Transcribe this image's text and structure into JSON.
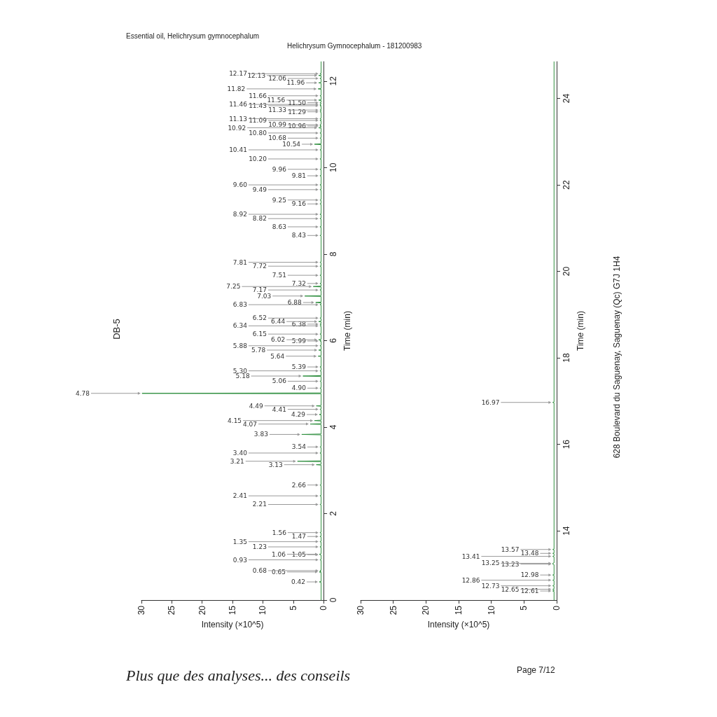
{
  "chart_data": [
    {
      "type": "line",
      "orientation": "horizontal",
      "title": "Helichrysum Gymnocephalum - 181200983",
      "xlabel": "Intensity (×10^5)",
      "ylabel": "Time (min)",
      "xlim": [
        30,
        0
      ],
      "xticks": [
        0,
        5,
        10,
        15,
        20,
        25,
        30
      ],
      "ylim": [
        0,
        12.45
      ],
      "yticks": [
        0,
        2,
        4,
        6,
        8,
        10,
        12
      ],
      "marker": "none",
      "line_style": "solid",
      "grid": false,
      "x": [
        0,
        0.41,
        0.42,
        0.43,
        0.64,
        0.65,
        0.66,
        0.67,
        0.68,
        0.69,
        0.92,
        0.93,
        0.94,
        1.04,
        1.05,
        1.06,
        1.07,
        1.22,
        1.23,
        1.24,
        1.34,
        1.35,
        1.36,
        1.46,
        1.47,
        1.48,
        1.55,
        1.56,
        1.57,
        2.2,
        2.21,
        2.22,
        2.4,
        2.41,
        2.42,
        2.65,
        2.66,
        2.67,
        3.12,
        3.13,
        3.14,
        3.2,
        3.21,
        3.22,
        3.39,
        3.4,
        3.41,
        3.53,
        3.54,
        3.55,
        3.82,
        3.83,
        3.84,
        4.06,
        4.07,
        4.08,
        4.14,
        4.15,
        4.16,
        4.28,
        4.29,
        4.3,
        4.4,
        4.41,
        4.42,
        4.48,
        4.49,
        4.5,
        4.77,
        4.78,
        4.79,
        4.89,
        4.9,
        4.91,
        5.05,
        5.06,
        5.07,
        5.17,
        5.18,
        5.19,
        5.29,
        5.3,
        5.31,
        5.38,
        5.39,
        5.4,
        5.63,
        5.64,
        5.65,
        5.77,
        5.78,
        5.79,
        5.87,
        5.88,
        5.89,
        5.98,
        5.99,
        6.0,
        6.01,
        6.02,
        6.03,
        6.14,
        6.15,
        6.16,
        6.33,
        6.34,
        6.35,
        6.37,
        6.38,
        6.39,
        6.43,
        6.44,
        6.45,
        6.51,
        6.52,
        6.53,
        6.82,
        6.83,
        6.84,
        6.87,
        6.88,
        6.89,
        7.02,
        7.03,
        7.04,
        7.16,
        7.17,
        7.18,
        7.24,
        7.25,
        7.26,
        7.31,
        7.32,
        7.33,
        7.5,
        7.51,
        7.52,
        7.71,
        7.72,
        7.73,
        7.8,
        7.81,
        7.82,
        8.42,
        8.43,
        8.44,
        8.62,
        8.63,
        8.64,
        8.81,
        8.82,
        8.83,
        8.91,
        8.92,
        8.93,
        9.15,
        9.16,
        9.17,
        9.24,
        9.25,
        9.26,
        9.48,
        9.49,
        9.5,
        9.59,
        9.6,
        9.61,
        9.8,
        9.81,
        9.82,
        9.95,
        9.96,
        9.97,
        10.19,
        10.2,
        10.21,
        10.4,
        10.41,
        10.42,
        10.53,
        10.54,
        10.55,
        10.67,
        10.68,
        10.69,
        10.79,
        10.8,
        10.81,
        10.91,
        10.92,
        10.93,
        10.95,
        10.96,
        10.97,
        10.98,
        10.99,
        11.0,
        11.08,
        11.09,
        11.1,
        11.12,
        11.13,
        11.14,
        11.28,
        11.29,
        11.3,
        11.32,
        11.33,
        11.34,
        11.42,
        11.43,
        11.44,
        11.45,
        11.46,
        11.47,
        11.49,
        11.5,
        11.51,
        11.55,
        11.56,
        11.57,
        11.65,
        11.66,
        11.67,
        11.81,
        11.82,
        11.83,
        11.95,
        11.96,
        11.97,
        12.05,
        12.06,
        12.07,
        12.12,
        12.13,
        12.14,
        12.16,
        12.17,
        12.18,
        12.45
      ],
      "series": [
        {
          "color": "#2f8f3f",
          "values": [
            0.4,
            0.4,
            0.7,
            0.4,
            0.4,
            0.7,
            0.4,
            0.4,
            0.6,
            0.4,
            0.4,
            0.6,
            0.4,
            0.4,
            0.6,
            0.7,
            0.4,
            0.4,
            0.6,
            0.4,
            0.4,
            0.6,
            0.4,
            0.4,
            0.6,
            0.4,
            0.4,
            0.6,
            0.4,
            0.4,
            0.6,
            0.4,
            0.4,
            0.6,
            0.4,
            0.4,
            0.6,
            0.4,
            0.4,
            1.2,
            0.4,
            0.4,
            4.3,
            0.4,
            0.4,
            0.6,
            0.4,
            0.4,
            0.6,
            0.4,
            0.4,
            3.6,
            0.4,
            0.4,
            2.2,
            0.4,
            0.4,
            1.5,
            0.4,
            0.4,
            0.7,
            0.4,
            0.4,
            0.6,
            0.4,
            0.4,
            1.2,
            0.4,
            0.4,
            29.9,
            0.4,
            0.4,
            0.6,
            0.4,
            0.4,
            0.6,
            0.4,
            0.4,
            3.4,
            0.4,
            0.4,
            0.6,
            0.4,
            0.4,
            0.6,
            0.4,
            0.4,
            0.9,
            0.4,
            0.4,
            0.8,
            0.4,
            0.4,
            0.6,
            0.4,
            0.4,
            0.6,
            0.4,
            0.4,
            0.8,
            0.4,
            0.4,
            0.6,
            0.4,
            0.4,
            0.6,
            0.4,
            0.4,
            0.6,
            0.4,
            0.4,
            0.8,
            0.4,
            0.4,
            0.6,
            0.4,
            0.4,
            0.6,
            0.4,
            0.4,
            1.3,
            0.4,
            0.4,
            3.1,
            0.4,
            0.4,
            0.6,
            0.4,
            0.4,
            1.7,
            0.4,
            0.4,
            0.6,
            0.4,
            0.4,
            0.6,
            0.4,
            0.4,
            0.6,
            0.4,
            0.4,
            0.6,
            0.4,
            0.4,
            0.6,
            0.4,
            0.4,
            0.6,
            0.4,
            0.4,
            0.6,
            0.4,
            0.4,
            0.6,
            0.4,
            0.4,
            0.6,
            0.4,
            0.4,
            0.6,
            0.4,
            0.4,
            0.6,
            0.4,
            0.4,
            0.6,
            0.4,
            0.4,
            0.6,
            0.4,
            0.4,
            0.6,
            0.4,
            0.4,
            0.6,
            0.4,
            0.4,
            0.6,
            0.4,
            0.4,
            1.5,
            0.4,
            0.4,
            0.6,
            0.4,
            0.4,
            0.6,
            0.4,
            0.4,
            0.8,
            0.4,
            0.4,
            0.6,
            0.4,
            0.4,
            0.6,
            0.4,
            0.4,
            0.6,
            0.4,
            0.4,
            0.6,
            0.4,
            0.4,
            0.6,
            0.4,
            0.4,
            0.6,
            0.4,
            0.4,
            0.6,
            0.4,
            0.4,
            0.6,
            0.4,
            0.4,
            0.6,
            0.4,
            0.4,
            0.8,
            0.4,
            0.4,
            0.6,
            0.4,
            0.4,
            0.9,
            0.4,
            0.4,
            0.8,
            0.4,
            0.4,
            0.6,
            0.4,
            0.4,
            0.8,
            0.4,
            0.4,
            0.6,
            0.4,
            0.4
          ]
        }
      ],
      "annotations": [
        "Essential oil, Helichrysum gymnocephalum",
        "DB-5",
        "628 Boulevard du Saguenay, Saguenay (Qc)  G7J 1H4",
        "Plus que des analyses... des conseils",
        "Page 7/12",
        {
          "text": "0.42",
          "y": 0.42,
          "x": 0.7
        },
        {
          "text": "0.65",
          "y": 0.65,
          "x": 0.7
        },
        {
          "text": "0.68",
          "y": 0.68,
          "x": 0.6
        },
        {
          "text": "0.93",
          "y": 0.93,
          "x": 0.6
        },
        {
          "text": "1.05",
          "y": 1.05,
          "x": 0.6
        },
        {
          "text": "1.06",
          "y": 1.06,
          "x": 0.7
        },
        {
          "text": "1.23",
          "y": 1.23,
          "x": 0.6
        },
        {
          "text": "1.35",
          "y": 1.35,
          "x": 0.6
        },
        {
          "text": "1.47",
          "y": 1.47,
          "x": 0.6
        },
        {
          "text": "1.56",
          "y": 1.56,
          "x": 0.6
        },
        {
          "text": "2.21",
          "y": 2.21,
          "x": 0.6
        },
        {
          "text": "2.41",
          "y": 2.41,
          "x": 0.6
        },
        {
          "text": "2.66",
          "y": 2.66,
          "x": 0.6
        },
        {
          "text": "3.13",
          "y": 3.13,
          "x": 1.2
        },
        {
          "text": "3.21",
          "y": 3.21,
          "x": 4.3
        },
        {
          "text": "3.40",
          "y": 3.4,
          "x": 0.6
        },
        {
          "text": "3.54",
          "y": 3.54,
          "x": 0.6
        },
        {
          "text": "3.83",
          "y": 3.83,
          "x": 3.6
        },
        {
          "text": "4.07",
          "y": 4.07,
          "x": 2.2
        },
        {
          "text": "4.15",
          "y": 4.15,
          "x": 1.5
        },
        {
          "text": "4.29",
          "y": 4.29,
          "x": 0.7
        },
        {
          "text": "4.41",
          "y": 4.41,
          "x": 0.6
        },
        {
          "text": "4.49",
          "y": 4.49,
          "x": 1.2
        },
        {
          "text": "4.78",
          "y": 4.78,
          "x": 29.9
        },
        {
          "text": "4.90",
          "y": 4.9,
          "x": 0.6
        },
        {
          "text": "5.06",
          "y": 5.06,
          "x": 0.6
        },
        {
          "text": "5.18",
          "y": 5.18,
          "x": 3.4
        },
        {
          "text": "5.30",
          "y": 5.3,
          "x": 0.6
        },
        {
          "text": "5.39",
          "y": 5.39,
          "x": 0.6
        },
        {
          "text": "5.64",
          "y": 5.64,
          "x": 0.9
        },
        {
          "text": "5.78",
          "y": 5.78,
          "x": 0.8
        },
        {
          "text": "5.88",
          "y": 5.88,
          "x": 0.6
        },
        {
          "text": "5.99",
          "y": 5.99,
          "x": 0.6
        },
        {
          "text": "6.02",
          "y": 6.02,
          "x": 0.8
        },
        {
          "text": "6.15",
          "y": 6.15,
          "x": 0.6
        },
        {
          "text": "6.34",
          "y": 6.34,
          "x": 0.6
        },
        {
          "text": "6.38",
          "y": 6.38,
          "x": 0.6
        },
        {
          "text": "6.44",
          "y": 6.44,
          "x": 0.8
        },
        {
          "text": "6.52",
          "y": 6.52,
          "x": 0.6
        },
        {
          "text": "6.83",
          "y": 6.83,
          "x": 0.6
        },
        {
          "text": "6.88",
          "y": 6.88,
          "x": 1.3
        },
        {
          "text": "7.03",
          "y": 7.03,
          "x": 3.1
        },
        {
          "text": "7.17",
          "y": 7.17,
          "x": 0.6
        },
        {
          "text": "7.25",
          "y": 7.25,
          "x": 1.7
        },
        {
          "text": "7.32",
          "y": 7.32,
          "x": 0.6
        },
        {
          "text": "7.51",
          "y": 7.51,
          "x": 0.6
        },
        {
          "text": "7.72",
          "y": 7.72,
          "x": 0.6
        },
        {
          "text": "7.81",
          "y": 7.81,
          "x": 0.6
        },
        {
          "text": "8.43",
          "y": 8.43,
          "x": 0.6
        },
        {
          "text": "8.63",
          "y": 8.63,
          "x": 0.6
        },
        {
          "text": "8.82",
          "y": 8.82,
          "x": 0.6
        },
        {
          "text": "8.92",
          "y": 8.92,
          "x": 0.6
        },
        {
          "text": "9.16",
          "y": 9.16,
          "x": 0.6
        },
        {
          "text": "9.25",
          "y": 9.25,
          "x": 0.6
        },
        {
          "text": "9.49",
          "y": 9.49,
          "x": 0.6
        },
        {
          "text": "9.60",
          "y": 9.6,
          "x": 0.6
        },
        {
          "text": "9.81",
          "y": 9.81,
          "x": 0.6
        },
        {
          "text": "9.96",
          "y": 9.96,
          "x": 0.6
        },
        {
          "text": "10.20",
          "y": 10.2,
          "x": 0.6
        },
        {
          "text": "10.41",
          "y": 10.41,
          "x": 0.6
        },
        {
          "text": "10.54",
          "y": 10.54,
          "x": 1.5
        },
        {
          "text": "10.68",
          "y": 10.68,
          "x": 0.6
        },
        {
          "text": "10.80",
          "y": 10.8,
          "x": 0.6
        },
        {
          "text": "10.92",
          "y": 10.92,
          "x": 0.8
        },
        {
          "text": "10.96",
          "y": 10.96,
          "x": 0.6
        },
        {
          "text": "10.99",
          "y": 10.99,
          "x": 0.6
        },
        {
          "text": "11.09",
          "y": 11.09,
          "x": 0.6
        },
        {
          "text": "11.13",
          "y": 11.13,
          "x": 0.6
        },
        {
          "text": "11.29",
          "y": 11.29,
          "x": 0.6
        },
        {
          "text": "11.33",
          "y": 11.33,
          "x": 0.6
        },
        {
          "text": "11.43",
          "y": 11.43,
          "x": 0.6
        },
        {
          "text": "11.46",
          "y": 11.46,
          "x": 0.6
        },
        {
          "text": "11.50",
          "y": 11.5,
          "x": 0.6
        },
        {
          "text": "11.56",
          "y": 11.56,
          "x": 0.8
        },
        {
          "text": "11.66",
          "y": 11.66,
          "x": 0.6
        },
        {
          "text": "11.82",
          "y": 11.82,
          "x": 0.9
        },
        {
          "text": "11.96",
          "y": 11.96,
          "x": 0.8
        },
        {
          "text": "12.06",
          "y": 12.06,
          "x": 0.6
        },
        {
          "text": "12.13",
          "y": 12.13,
          "x": 0.8
        },
        {
          "text": "12.17",
          "y": 12.17,
          "x": 0.6
        }
      ]
    },
    {
      "type": "line",
      "orientation": "horizontal",
      "xlabel": "Intensity (×10^5)",
      "ylabel": "Time (min)",
      "xlim": [
        30,
        0
      ],
      "xticks": [
        0,
        5,
        10,
        15,
        20,
        25,
        30
      ],
      "ylim": [
        12.4,
        24.85
      ],
      "yticks": [
        14,
        16,
        18,
        20,
        22,
        24
      ],
      "marker": "none",
      "line_style": "solid",
      "grid": false,
      "x": [
        12.4,
        12.6,
        12.61,
        12.62,
        12.64,
        12.65,
        12.66,
        12.72,
        12.73,
        12.74,
        12.85,
        12.86,
        12.87,
        12.97,
        12.98,
        12.99,
        13.22,
        13.23,
        13.25,
        13.26,
        13.4,
        13.41,
        13.42,
        13.47,
        13.48,
        13.49,
        13.56,
        13.57,
        13.58,
        16.96,
        16.97,
        16.98,
        24.85
      ],
      "series": [
        {
          "color": "#2f8f3f",
          "values": [
            0.4,
            0.4,
            0.6,
            0.4,
            0.4,
            0.6,
            0.4,
            0.4,
            0.6,
            0.4,
            0.4,
            0.6,
            0.4,
            0.4,
            0.6,
            0.4,
            0.4,
            0.6,
            0.6,
            0.4,
            0.4,
            0.6,
            0.4,
            0.4,
            0.6,
            0.4,
            0.4,
            0.6,
            0.4,
            0.4,
            0.6,
            0.4,
            0.4
          ]
        }
      ],
      "annotations": [
        {
          "text": "12.61",
          "y": 12.61,
          "x": 0.6
        },
        {
          "text": "12.65",
          "y": 12.65,
          "x": 0.6
        },
        {
          "text": "12.73",
          "y": 12.73,
          "x": 0.6
        },
        {
          "text": "12.86",
          "y": 12.86,
          "x": 0.6
        },
        {
          "text": "12.98",
          "y": 12.98,
          "x": 0.6
        },
        {
          "text": "13.23",
          "y": 13.23,
          "x": 0.6
        },
        {
          "text": "13.25",
          "y": 13.25,
          "x": 0.6
        },
        {
          "text": "13.41",
          "y": 13.41,
          "x": 0.6
        },
        {
          "text": "13.48",
          "y": 13.48,
          "x": 0.6
        },
        {
          "text": "13.57",
          "y": 13.57,
          "x": 0.6
        },
        {
          "text": "16.97",
          "y": 16.97,
          "x": 0.6
        }
      ]
    }
  ]
}
